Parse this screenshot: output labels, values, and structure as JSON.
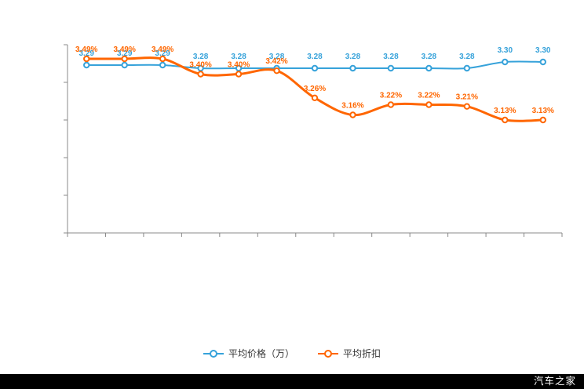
{
  "watermark": "汽车之家",
  "colors": {
    "blue": "#36a2da",
    "orange": "#ff6600",
    "axis": "#888888",
    "legend_text": "#333333",
    "footer_bg": "#000000",
    "footer_text": "#ffffff"
  },
  "legend": {
    "items": [
      {
        "label": "平均价格（万）",
        "series": "price"
      },
      {
        "label": "平均折扣",
        "series": "discount"
      }
    ]
  },
  "chart_data": {
    "type": "line",
    "title": "",
    "xlabel": "",
    "ylabel": "",
    "x_axis": {
      "points": 13,
      "tick_labels_visible": false
    },
    "y_axis": {
      "tick_count": 6,
      "tick_labels_visible": false
    },
    "grid": false,
    "legend_position": "bottom",
    "series": [
      {
        "name": "平均价格（万）",
        "color": "#36a2da",
        "unit": "万",
        "values": [
          3.29,
          3.29,
          3.29,
          3.28,
          3.28,
          3.28,
          3.28,
          3.28,
          3.28,
          3.28,
          3.28,
          3.3,
          3.3
        ],
        "labels": [
          "3.29",
          "3.29",
          "3.29",
          "3.28",
          "3.28",
          "3.28",
          "3.28",
          "3.28",
          "3.28",
          "3.28",
          "3.28",
          "3.30",
          "3.30"
        ]
      },
      {
        "name": "平均折扣",
        "color": "#ff6600",
        "unit": "%",
        "values": [
          3.49,
          3.49,
          3.49,
          3.4,
          3.4,
          3.42,
          3.26,
          3.16,
          3.22,
          3.22,
          3.21,
          3.13,
          3.13
        ],
        "labels": [
          "3.49%",
          "3.49%",
          "3.49%",
          "3.40%",
          "3.40%",
          "3.42%",
          "3.26%",
          "3.16%",
          "3.22%",
          "3.22%",
          "3.21%",
          "3.13%",
          "3.13%"
        ]
      }
    ]
  }
}
